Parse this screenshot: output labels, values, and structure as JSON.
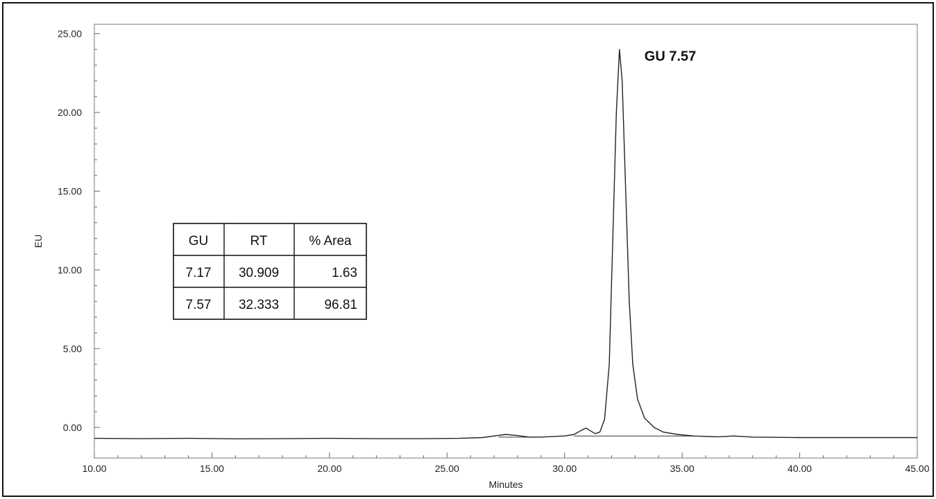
{
  "chart_data": {
    "type": "line",
    "title": "",
    "xlabel": "Minutes",
    "ylabel": "EU",
    "xlim": [
      10,
      45
    ],
    "ylim": [
      -1.95,
      25.6
    ],
    "grid": false,
    "x_ticks": [
      10,
      15,
      20,
      25,
      30,
      35,
      40,
      45
    ],
    "x_tick_labels": [
      "10.00",
      "15.00",
      "20.00",
      "25.00",
      "30.00",
      "35.00",
      "40.00",
      "45.00"
    ],
    "y_ticks": [
      0,
      5,
      10,
      15,
      20,
      25
    ],
    "y_tick_labels": [
      "0.00",
      "5.00",
      "10.00",
      "15.00",
      "20.00",
      "25.00"
    ],
    "series": [
      {
        "values": [
          [
            10.0,
            -0.7
          ],
          [
            12.0,
            -0.72
          ],
          [
            14.0,
            -0.7
          ],
          [
            16.0,
            -0.73
          ],
          [
            18.0,
            -0.72
          ],
          [
            20.0,
            -0.7
          ],
          [
            22.0,
            -0.72
          ],
          [
            24.0,
            -0.72
          ],
          [
            25.5,
            -0.7
          ],
          [
            26.5,
            -0.65
          ],
          [
            27.0,
            -0.55
          ],
          [
            27.5,
            -0.45
          ],
          [
            28.0,
            -0.52
          ],
          [
            28.5,
            -0.62
          ],
          [
            29.0,
            -0.62
          ],
          [
            29.5,
            -0.58
          ],
          [
            30.0,
            -0.55
          ],
          [
            30.4,
            -0.45
          ],
          [
            30.7,
            -0.2
          ],
          [
            30.909,
            -0.05
          ],
          [
            31.1,
            -0.22
          ],
          [
            31.3,
            -0.4
          ],
          [
            31.5,
            -0.3
          ],
          [
            31.7,
            0.5
          ],
          [
            31.9,
            4.0
          ],
          [
            32.05,
            12.0
          ],
          [
            32.2,
            20.0
          ],
          [
            32.333,
            24.0
          ],
          [
            32.45,
            22.0
          ],
          [
            32.6,
            15.0
          ],
          [
            32.75,
            8.0
          ],
          [
            32.9,
            4.0
          ],
          [
            33.1,
            1.8
          ],
          [
            33.4,
            0.6
          ],
          [
            33.8,
            0.0
          ],
          [
            34.2,
            -0.3
          ],
          [
            34.8,
            -0.45
          ],
          [
            35.5,
            -0.55
          ],
          [
            36.5,
            -0.6
          ],
          [
            37.2,
            -0.55
          ],
          [
            38.0,
            -0.62
          ],
          [
            40.0,
            -0.65
          ],
          [
            42.0,
            -0.65
          ],
          [
            45.0,
            -0.65
          ]
        ]
      }
    ],
    "baselines": [
      [
        [
          27.2,
          -0.62
        ],
        [
          29.0,
          -0.62
        ]
      ],
      [
        [
          30.4,
          -0.55
        ],
        [
          31.3,
          -0.55
        ]
      ],
      [
        [
          31.3,
          -0.55
        ],
        [
          35.5,
          -0.55
        ]
      ]
    ],
    "annotations": [
      {
        "text": "GU 7.57",
        "x": 32.333,
        "y": 24.0
      }
    ],
    "table": {
      "columns": [
        "GU",
        "RT",
        "% Area"
      ],
      "rows": [
        [
          "7.17",
          "30.909",
          "1.63"
        ],
        [
          "7.57",
          "32.333",
          "96.81"
        ]
      ]
    }
  },
  "colors": {
    "line": "#222222",
    "axis": "#555555",
    "frame": "#111111",
    "background": "#ffffff"
  }
}
